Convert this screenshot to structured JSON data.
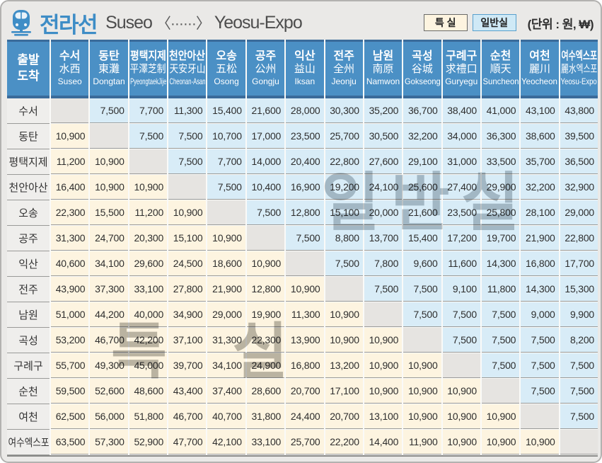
{
  "title": {
    "line_name": "전라선",
    "route_from": "Suseo",
    "route_arrow": "〈······〉",
    "route_to": "Yeosu-Expo",
    "unit_label": "(단위 : 원, ₩)"
  },
  "legend": {
    "first_class": "특 실",
    "standard_class": "일반실"
  },
  "watermarks": {
    "standard": "일반실",
    "first": "특 실"
  },
  "colors": {
    "header_blue": "#4b90c5",
    "header_edge_navy": "#3a6b9a",
    "first_class_bg": "#fdf4e0",
    "standard_class_bg": "#d8ecf7",
    "diagonal_bg": "#e6e4e1",
    "row_header_bg": "#efeeec",
    "title_blue": "#3e8dc6"
  },
  "table": {
    "corner": {
      "top": "출발",
      "bottom": "도착"
    },
    "stations": [
      {
        "kr": "수서",
        "hanja": "水西",
        "en": "Suseo"
      },
      {
        "kr": "동탄",
        "hanja": "東灘",
        "en": "Dongtan"
      },
      {
        "kr": "평택지제",
        "hanja": "平澤芝制",
        "en": "PyeongtaekJije"
      },
      {
        "kr": "천안아산",
        "hanja": "天安牙山",
        "en": "Cheonan-Asan"
      },
      {
        "kr": "오송",
        "hanja": "五松",
        "en": "Osong"
      },
      {
        "kr": "공주",
        "hanja": "公州",
        "en": "Gongju"
      },
      {
        "kr": "익산",
        "hanja": "益山",
        "en": "Iksan"
      },
      {
        "kr": "전주",
        "hanja": "全州",
        "en": "Jeonju"
      },
      {
        "kr": "남원",
        "hanja": "南原",
        "en": "Namwon"
      },
      {
        "kr": "곡성",
        "hanja": "谷城",
        "en": "Gokseong"
      },
      {
        "kr": "구례구",
        "hanja": "求禮口",
        "en": "Guryegu"
      },
      {
        "kr": "순천",
        "hanja": "順天",
        "en": "Suncheon"
      },
      {
        "kr": "여천",
        "hanja": "麗川",
        "en": "Yeocheon"
      },
      {
        "kr": "여수엑스포",
        "hanja": "麗水엑스포",
        "en": "Yeosu-Expo"
      }
    ],
    "rows": [
      {
        "label": "수서",
        "fares": [
          null,
          "7,500",
          "7,700",
          "11,300",
          "15,400",
          "21,600",
          "28,000",
          "30,300",
          "35,200",
          "36,700",
          "38,400",
          "41,000",
          "43,100",
          "43,800"
        ]
      },
      {
        "label": "동탄",
        "fares": [
          "10,900",
          null,
          "7,500",
          "7,500",
          "10,700",
          "17,000",
          "23,500",
          "25,700",
          "30,500",
          "32,200",
          "34,000",
          "36,300",
          "38,600",
          "39,500"
        ]
      },
      {
        "label": "평택지제",
        "fares": [
          "11,200",
          "10,900",
          null,
          "7,500",
          "7,700",
          "14,000",
          "20,400",
          "22,800",
          "27,600",
          "29,100",
          "31,000",
          "33,500",
          "35,700",
          "36,500"
        ]
      },
      {
        "label": "천안아산",
        "fares": [
          "16,400",
          "10,900",
          "10,900",
          null,
          "7,500",
          "10,400",
          "16,900",
          "19,200",
          "24,100",
          "25,600",
          "27,400",
          "29,900",
          "32,200",
          "32,900"
        ]
      },
      {
        "label": "오송",
        "fares": [
          "22,300",
          "15,500",
          "11,200",
          "10,900",
          null,
          "7,500",
          "12,800",
          "15,100",
          "20,000",
          "21,600",
          "23,500",
          "25,800",
          "28,100",
          "29,000"
        ]
      },
      {
        "label": "공주",
        "fares": [
          "31,300",
          "24,700",
          "20,300",
          "15,100",
          "10,900",
          null,
          "7,500",
          "8,800",
          "13,700",
          "15,400",
          "17,200",
          "19,700",
          "21,900",
          "22,800"
        ]
      },
      {
        "label": "익산",
        "fares": [
          "40,600",
          "34,100",
          "29,600",
          "24,500",
          "18,600",
          "10,900",
          null,
          "7,500",
          "7,800",
          "9,600",
          "11,600",
          "14,300",
          "16,800",
          "17,700"
        ]
      },
      {
        "label": "전주",
        "fares": [
          "43,900",
          "37,300",
          "33,100",
          "27,800",
          "21,900",
          "12,800",
          "10,900",
          null,
          "7,500",
          "7,500",
          "9,100",
          "11,800",
          "14,300",
          "15,300"
        ]
      },
      {
        "label": "남원",
        "fares": [
          "51,000",
          "44,200",
          "40,000",
          "34,900",
          "29,000",
          "19,900",
          "11,300",
          "10,900",
          null,
          "7,500",
          "7,500",
          "7,500",
          "9,000",
          "9,900"
        ]
      },
      {
        "label": "곡성",
        "fares": [
          "53,200",
          "46,700",
          "42,200",
          "37,100",
          "31,300",
          "22,300",
          "13,900",
          "10,900",
          "10,900",
          null,
          "7,500",
          "7,500",
          "7,500",
          "8,200"
        ]
      },
      {
        "label": "구례구",
        "fares": [
          "55,700",
          "49,300",
          "45,000",
          "39,700",
          "34,100",
          "24,900",
          "16,800",
          "13,200",
          "10,900",
          "10,900",
          null,
          "7,500",
          "7,500",
          "7,500"
        ]
      },
      {
        "label": "순천",
        "fares": [
          "59,500",
          "52,600",
          "48,600",
          "43,400",
          "37,400",
          "28,600",
          "20,700",
          "17,100",
          "10,900",
          "10,900",
          "10,900",
          null,
          "7,500",
          "7,500"
        ]
      },
      {
        "label": "여천",
        "fares": [
          "62,500",
          "56,000",
          "51,800",
          "46,700",
          "40,700",
          "31,800",
          "24,400",
          "20,700",
          "13,100",
          "10,900",
          "10,900",
          "10,900",
          null,
          "7,500"
        ]
      },
      {
        "label": "여수엑스포",
        "fares": [
          "63,500",
          "57,300",
          "52,900",
          "47,700",
          "42,100",
          "33,100",
          "25,700",
          "22,200",
          "14,400",
          "11,900",
          "10,900",
          "10,900",
          "10,900",
          null
        ]
      }
    ]
  }
}
